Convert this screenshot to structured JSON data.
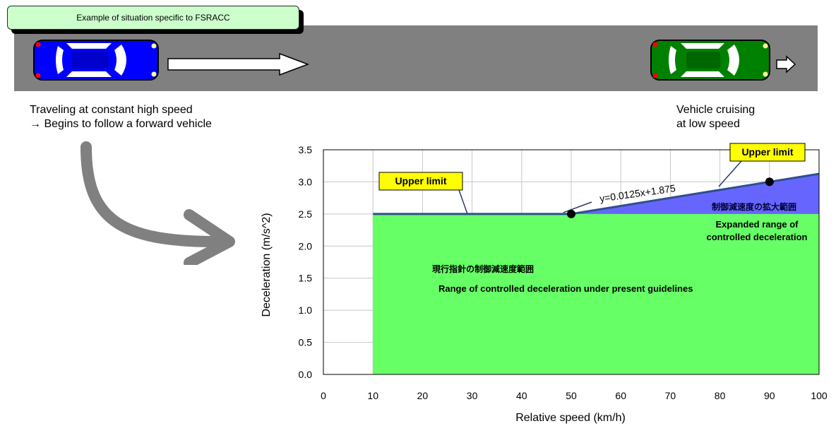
{
  "callout": {
    "label": "Example of situation specific to FSRACC"
  },
  "captions": {
    "left_line1": "Traveling at constant high speed",
    "left_line2": "→ Begins to follow a forward vehicle",
    "right_line1": "Vehicle cruising",
    "right_line2": "at low speed"
  },
  "colors": {
    "road": "#808080",
    "host_car": "#0000ff",
    "lead_car": "#008000",
    "present_range_fill": "#66ff66",
    "expanded_range_fill": "#6666ff",
    "upper_limit_line": "#2f4f8f",
    "label_box": "#ffff00"
  },
  "icons": [
    "host-car-icon",
    "motion-arrow-icon",
    "lead-car-icon",
    "small-arrow-icon",
    "curved-arrow-icon"
  ],
  "chart_data": {
    "type": "area",
    "xlabel": "Relative speed (km/h)",
    "ylabel": "Deceleration (m/s^2)",
    "xlim": [
      0,
      100
    ],
    "ylim": [
      0,
      3.5
    ],
    "x_ticks": [
      "0",
      "10",
      "20",
      "30",
      "40",
      "50",
      "60",
      "70",
      "80",
      "90",
      "100"
    ],
    "y_ticks": [
      "0.0",
      "0.5",
      "1.0",
      "1.5",
      "2.0",
      "2.5",
      "3.0",
      "3.5"
    ],
    "grid": true,
    "series": [
      {
        "x": [
          10,
          50,
          100
        ],
        "y": [
          2.5,
          2.5,
          3.125
        ]
      }
    ],
    "points": [
      {
        "x": 50,
        "y": 2.5
      },
      {
        "x": 90,
        "y": 3.0
      }
    ],
    "present_range": {
      "x_from": 10,
      "x_to": 100,
      "y_top": 2.5
    },
    "annotations": {
      "upper_limit_left": "Upper limit",
      "upper_limit_right": "Upper limit",
      "equation": "y=0.0125x+1.875",
      "expanded_jp": "制御減速度の拡大範囲",
      "expanded_en_line1": "Expanded range of",
      "expanded_en_line2": "controlled deceleration",
      "present_jp": "現行指針の制御減速度範囲",
      "present_en": "Range of controlled deceleration under present guidelines"
    }
  }
}
